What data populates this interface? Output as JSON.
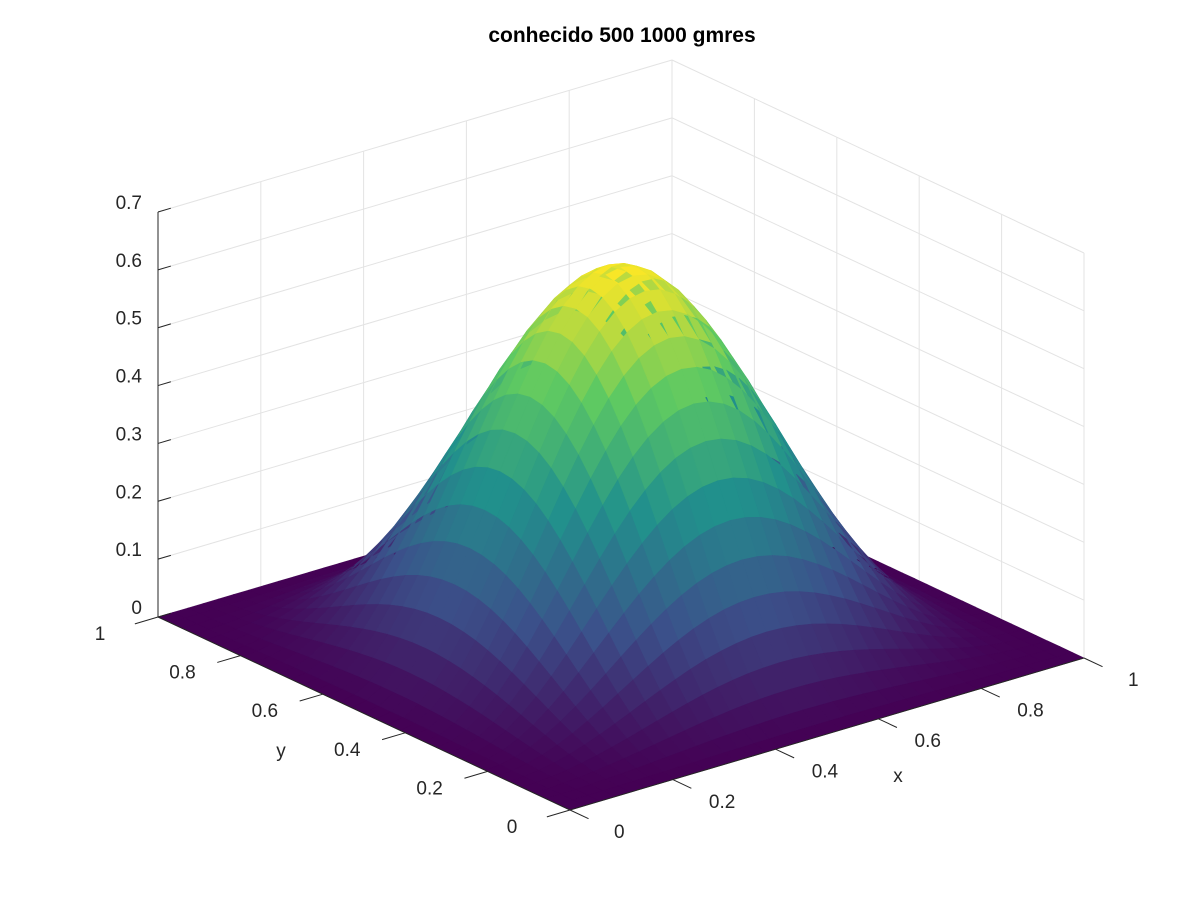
{
  "chart_data": {
    "type": "surface3d",
    "title": "conhecido 500 1000 gmres",
    "xlabel": "x",
    "ylabel": "y",
    "zlabel": "",
    "xlim": [
      0,
      1
    ],
    "ylim": [
      0,
      1
    ],
    "zlim": [
      0,
      0.7
    ],
    "xticks": [
      {
        "value": 0,
        "label": "0"
      },
      {
        "value": 0.2,
        "label": "0.2"
      },
      {
        "value": 0.4,
        "label": "0.4"
      },
      {
        "value": 0.6,
        "label": "0.6"
      },
      {
        "value": 0.8,
        "label": "0.8"
      },
      {
        "value": 1,
        "label": "1"
      }
    ],
    "yticks": [
      {
        "value": 0,
        "label": "0"
      },
      {
        "value": 0.2,
        "label": "0.2"
      },
      {
        "value": 0.4,
        "label": "0.4"
      },
      {
        "value": 0.6,
        "label": "0.6"
      },
      {
        "value": 0.8,
        "label": "0.8"
      },
      {
        "value": 1,
        "label": "1"
      }
    ],
    "zticks": [
      {
        "value": 0,
        "label": "0"
      },
      {
        "value": 0.1,
        "label": "0.1"
      },
      {
        "value": 0.2,
        "label": "0.2"
      },
      {
        "value": 0.3,
        "label": "0.3"
      },
      {
        "value": 0.4,
        "label": "0.4"
      },
      {
        "value": 0.5,
        "label": "0.5"
      },
      {
        "value": 0.6,
        "label": "0.6"
      },
      {
        "value": 0.7,
        "label": "0.7"
      }
    ],
    "surface": {
      "function": "z = 0.64 * sin(pi*x)^2 * sin(pi*y)^2",
      "peak": {
        "x": 0.5,
        "y": 0.5,
        "z": 0.64
      },
      "colormap": "viridis",
      "colors": [
        "#440154",
        "#3b528b",
        "#21918c",
        "#5ec962",
        "#fde725"
      ]
    },
    "grid": true,
    "legend": "none"
  }
}
